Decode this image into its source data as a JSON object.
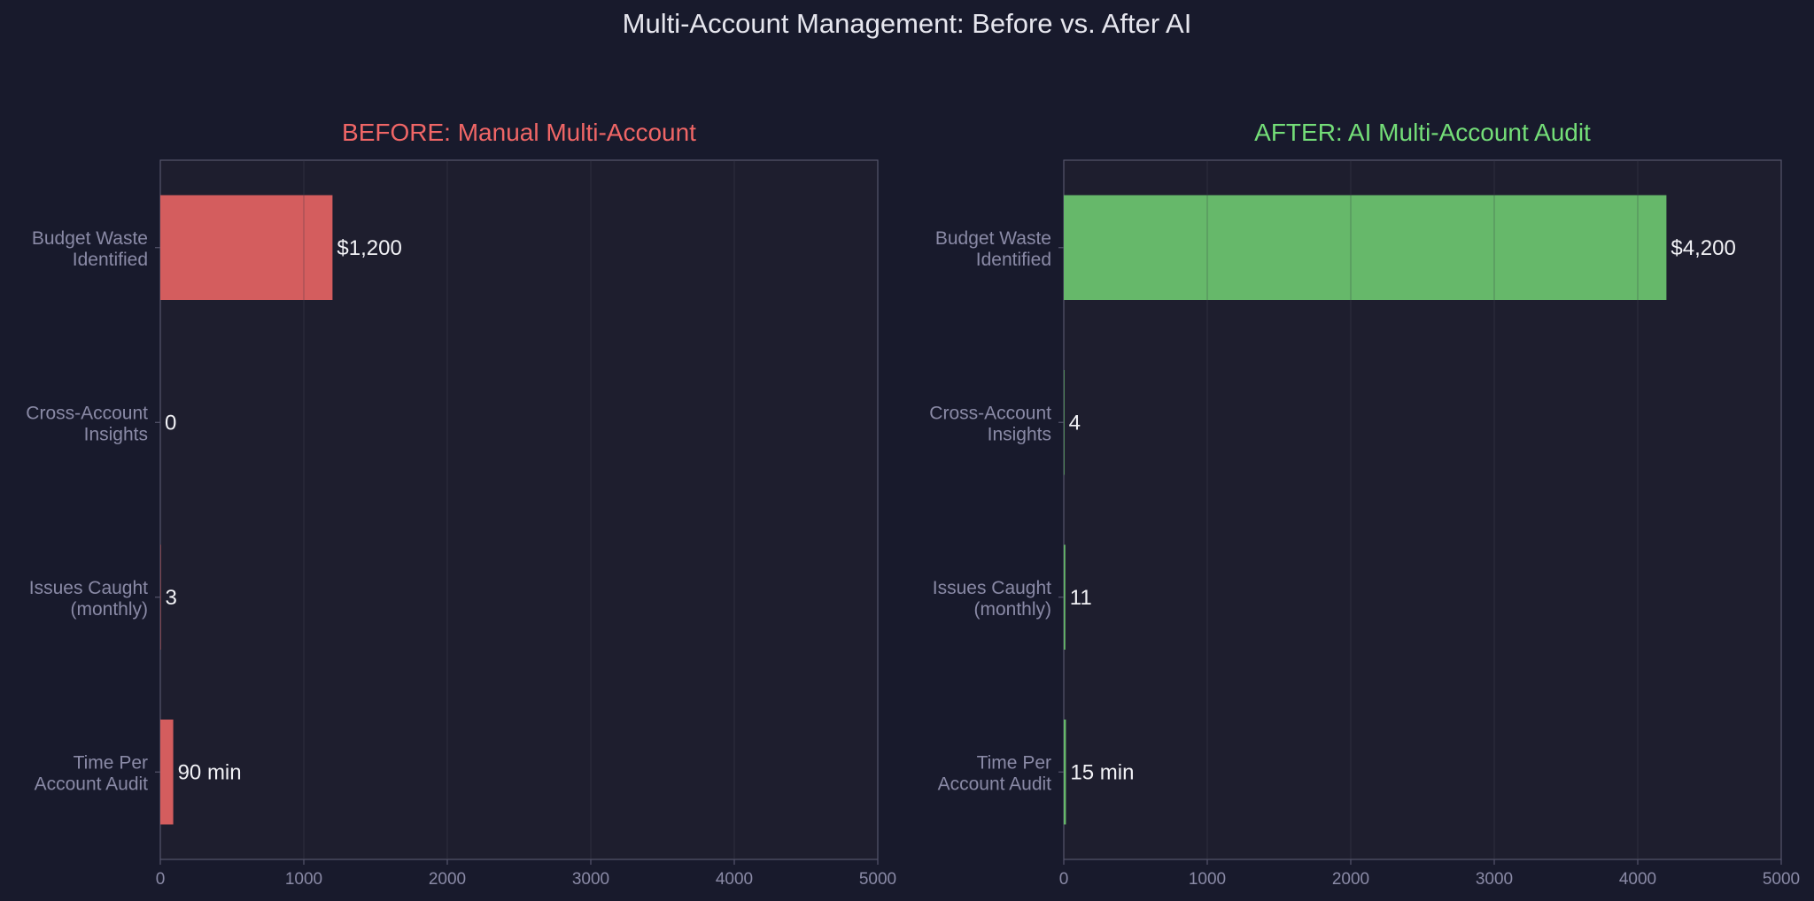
{
  "title": "Multi-Account Management: Before vs. After AI",
  "chart_data": [
    {
      "type": "bar",
      "orientation": "horizontal",
      "title": "BEFORE: Manual Multi-Account",
      "title_color": "#f06666",
      "bar_color": "#d45d5e",
      "categories": [
        [
          "Budget Waste",
          "Identified"
        ],
        [
          "Cross-Account",
          "Insights"
        ],
        [
          "Issues Caught",
          "(monthly)"
        ],
        [
          "Time Per",
          "Account Audit"
        ]
      ],
      "values": [
        1200,
        0,
        3,
        90
      ],
      "value_labels": [
        "$1,200",
        "0",
        "3",
        "90 min"
      ],
      "xlim": [
        0,
        5000
      ],
      "xticks": [
        0,
        1000,
        2000,
        3000,
        4000,
        5000
      ],
      "grid": true
    },
    {
      "type": "bar",
      "orientation": "horizontal",
      "title": "AFTER: AI Multi-Account Audit",
      "title_color": "#74de78",
      "bar_color": "#66b86a",
      "categories": [
        [
          "Budget Waste",
          "Identified"
        ],
        [
          "Cross-Account",
          "Insights"
        ],
        [
          "Issues Caught",
          "(monthly)"
        ],
        [
          "Time Per",
          "Account Audit"
        ]
      ],
      "values": [
        4200,
        4,
        11,
        15
      ],
      "value_labels": [
        "$4,200",
        "4",
        "11",
        "15 min"
      ],
      "xlim": [
        0,
        5000
      ],
      "xticks": [
        0,
        1000,
        2000,
        3000,
        4000,
        5000
      ],
      "grid": true
    }
  ]
}
